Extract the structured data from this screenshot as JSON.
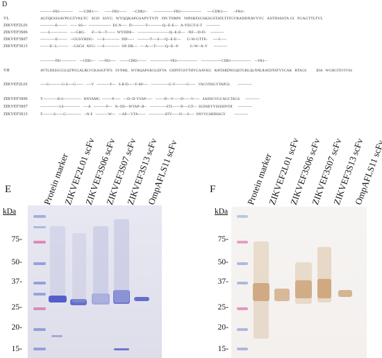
{
  "panel_d": {
    "letter": "D",
    "light_chain": {
      "region_header": "----------FR1----------      ----CDR1----      ------FR2------      --CDR2--      ----------------FR3----------------      ----CDR3----      --FR4--",
      "rows": [
        {
          "name": "VL",
          "seq": "ALTQESSSAVPGGTVKLTC   SGD   SSYG   WYQQKAPGSAPVTVIY   DN TNRPS   NIPSRFSGSKSGSTATLTITGVRADDNAVYYC   ASTDSSSTA GI   FGAGTTLTVL"
        },
        {
          "name": "ZIKVEF2L01",
          "seq": "-----------E-------   ----- SS---  ----------------  ES N----  D----------T-----------Q--E-E---  A-YEGT-S-T    ----------"
        },
        {
          "name": "ZIKVEF3S06",
          "seq": "------L------------   ----GRG-     -F---S---T------  WYDDE--   -----------------------Q--E-E---  -NF---D-D-    ----------"
        },
        {
          "name": "ZIKVEF3S07",
          "seq": "-----------E-------   --GGSYRDG-   ----S-----------  DD-----   ---------T----S----Q--E-E---      G-W-GTTE-     ----I-----"
        },
        {
          "name": "ZIKVEF3S13",
          "seq": "-------E--L--------   --GSGS  AYG- ----S-----------  SN DK---  ----A----T-------Q--E--F-          G-W--A-V      ----------"
        }
      ]
    },
    "heavy_chain": {
      "region_header": "-------------FR1-------------    ---CDR1---    -----FR2-----    --------CDR2--------    ------------------FR3------------------    ------------------CDR3------------------    ---FR4---",
      "rows": [
        {
          "name": "VH",
          "seq": "AVTLDESGGGLQTPGGALRLVCKASGFTFS   SYNML   WVRQAPGKGLEFVA   GIDNTGSYTHYGAAVKG   RATISRDNGQSTGRLQLNNLRAEDTATYYCAK   RTAGS          IDA   WGHGTEVIVSS"
        },
        {
          "name": "ZIKVEF2L01",
          "seq": "-----G----------G-S----G------   ----V   ----------Y---   S-R-D-----Y-AP----   --------------G-V---------G-----   VAGVDSGYTAPGL        -----------"
        },
        {
          "name": "ZIKVEF3S06",
          "seq": "T------------R-S--------------   RNYAMG  --------P-----   ---D--D-YYAP-----   -------D---V------D------V-----   SADSGYGCAGCTAGS      -----------"
        },
        {
          "name": "ZIKVEF3S07",
          "seq": "---------------LS-------------   ----A   ----------P---   N--DS---WYAP--R--   -------------STL------N----GT---  SGDSEYYISSSDVDI      -----------"
        },
        {
          "name": "ZIKVEF3S13",
          "seq": "T---------S------G------------   --N-F   ----------W---   ---AP---YTA------   -------------STV------N----S----  SNVYGSRDSSGY         -----------"
        }
      ]
    }
  },
  "panel_e": {
    "letter": "E",
    "kda_label": "kDa",
    "lanes": [
      "Protein marker",
      "ZIKVEF2L01 scFv",
      "ZIKVEF3S06 scFv",
      "ZIKVEF3S07 scFv",
      "ZIKVEF3S13 scFv",
      "OmpAFLS11 scFv"
    ],
    "markers": [
      "75-",
      "50-",
      "37-",
      "25-",
      "20-",
      "15-"
    ]
  },
  "panel_f": {
    "letter": "F",
    "kda_label": "kDa",
    "lanes": [
      "Protein marker",
      "ZIKVEF2L01 scFv",
      "ZIKVEF3S06 scFv",
      "ZIKVEF3S07 scFv",
      "ZIKVEF3S13 scFv",
      "OmpAFLS11 scFv"
    ],
    "markers": [
      "75-",
      "50-",
      "37-",
      "25-",
      "20-",
      "15-"
    ]
  },
  "colors": {
    "coomassie_band": "#4a56c8",
    "western_band": "#c89a6a",
    "marker_pink": "#d87ab0",
    "marker_blue": "#6a7ad8"
  }
}
